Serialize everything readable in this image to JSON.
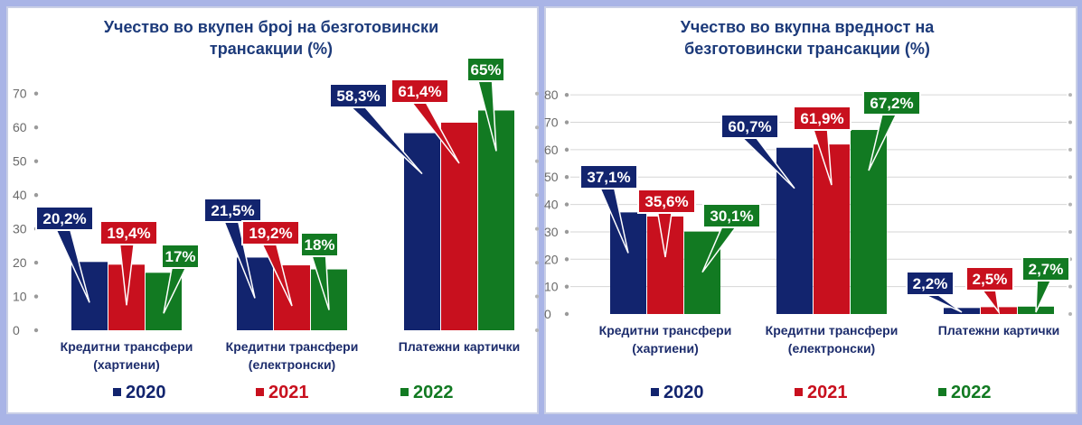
{
  "colors": {
    "s2020": "#12246e",
    "s2021": "#c8101e",
    "s2022": "#127a22",
    "title": "#1c3a7a",
    "axis_text": "#6a6a6a",
    "category_text": "#1c2c6c"
  },
  "chart_data": [
    {
      "type": "bar",
      "title": "Учество во вкупен број на безготовински трансакции (%)",
      "title_lines": [
        "Учество во вкупен број на безготовински",
        "трансакции  (%)"
      ],
      "categories": [
        "Кредитни трансфери (хартиени)",
        "Кредитни трансфери (електронски)",
        "Платежни картички"
      ],
      "category_lines": [
        [
          "Кредитни трансфери",
          "(хартиени)"
        ],
        [
          "Кредитни трансфери",
          "(електронски)"
        ],
        [
          "Платежни картички"
        ]
      ],
      "series": [
        {
          "name": "2020",
          "values": [
            20.2,
            21.5,
            58.3
          ],
          "labels": [
            "20,2%",
            "21,5%",
            "58,3%"
          ]
        },
        {
          "name": "2021",
          "values": [
            19.4,
            19.2,
            61.4
          ],
          "labels": [
            "19,4%",
            "19,2%",
            "61,4%"
          ]
        },
        {
          "name": "2022",
          "values": [
            17,
            18,
            65
          ],
          "labels": [
            "17%",
            "18%",
            "65%"
          ]
        }
      ],
      "yticks": [
        "0",
        "10",
        "20",
        "30",
        "40",
        "50",
        "60",
        "70"
      ],
      "ylim": [
        0,
        75
      ],
      "grid": false,
      "legend": "bottom"
    },
    {
      "type": "bar",
      "title": "Учество во вкупна вредност на безготовински трансакции (%)",
      "title_lines": [
        "Учество во вкупна вредност на",
        "безготовински трансакции  (%)"
      ],
      "categories": [
        "Кредитни трансфери (хартиени)",
        "Кредитни трансфери (електронски)",
        "Платежни картички"
      ],
      "category_lines": [
        [
          "Кредитни трансфери",
          "(хартиени)"
        ],
        [
          "Кредитни трансфери",
          "(електронски)"
        ],
        [
          "Платежни картички"
        ]
      ],
      "series": [
        {
          "name": "2020",
          "values": [
            37.1,
            60.7,
            2.2
          ],
          "labels": [
            "37,1%",
            "60,7%",
            "2,2%"
          ]
        },
        {
          "name": "2021",
          "values": [
            35.6,
            61.9,
            2.5
          ],
          "labels": [
            "35,6%",
            "61,9%",
            "2,5%"
          ]
        },
        {
          "name": "2022",
          "values": [
            30.1,
            67.2,
            2.7
          ],
          "labels": [
            "30,1%",
            "67,2%",
            "2,7%"
          ]
        }
      ],
      "yticks": [
        "0",
        "10",
        "20",
        "30",
        "40",
        "50",
        "60",
        "70",
        "80"
      ],
      "ylim": [
        0,
        85
      ],
      "grid": true,
      "legend": "bottom"
    }
  ]
}
